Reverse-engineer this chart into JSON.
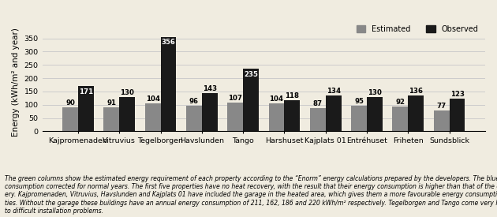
{
  "categories": [
    "Kajpromenaden",
    "Vitruvius",
    "Tegelborgen",
    "Havslunden",
    "Tango",
    "Harshuset",
    "Kajplats 01",
    "Entréhuset",
    "Friheten",
    "Sundsblick"
  ],
  "estimated": [
    90,
    91,
    104,
    96,
    107,
    104,
    87,
    95,
    92,
    77
  ],
  "observed": [
    171,
    130,
    356,
    143,
    235,
    118,
    134,
    130,
    136,
    123
  ],
  "estimated_color": "#888888",
  "observed_color": "#1a1a1a",
  "ylabel": "Energy (kWh/m² and year)",
  "ylim": [
    0,
    370
  ],
  "yticks": [
    0,
    50,
    100,
    150,
    200,
    250,
    300,
    350
  ],
  "legend_estimated": "Estimated",
  "legend_observed": "Observed",
  "footnote": "The green columns show the estimated energy requirement of each property according to the “Enorm” energy calculations prepared by the developers. The blue columns represent observed energy\nconsumption corrected for normal years. The first five properties have no heat recovery, with the result that their energy consumption is higher than that of the other five, which do have heat recov-\nery. Kajpromenaden, Vitruvius, Havslunden and Kajplats 01 have included the garage in the heated area, which gives them a more favourable energy consumption per m² than the other proper-\nties. Without the garage these buildings have an annual energy consumption of 211, 162, 186 and 220 kWh/m² respectively. Tegelborgen and Tango come very high, owing among other things\nto difficult installation problems.",
  "bar_width": 0.38,
  "value_fontsize": 6.2,
  "tick_fontsize": 6.8,
  "ylabel_fontsize": 7.5,
  "legend_fontsize": 7.0,
  "footnote_fontsize": 5.6,
  "grid_color": "#cccccc",
  "bg_color": "#f0ece0"
}
